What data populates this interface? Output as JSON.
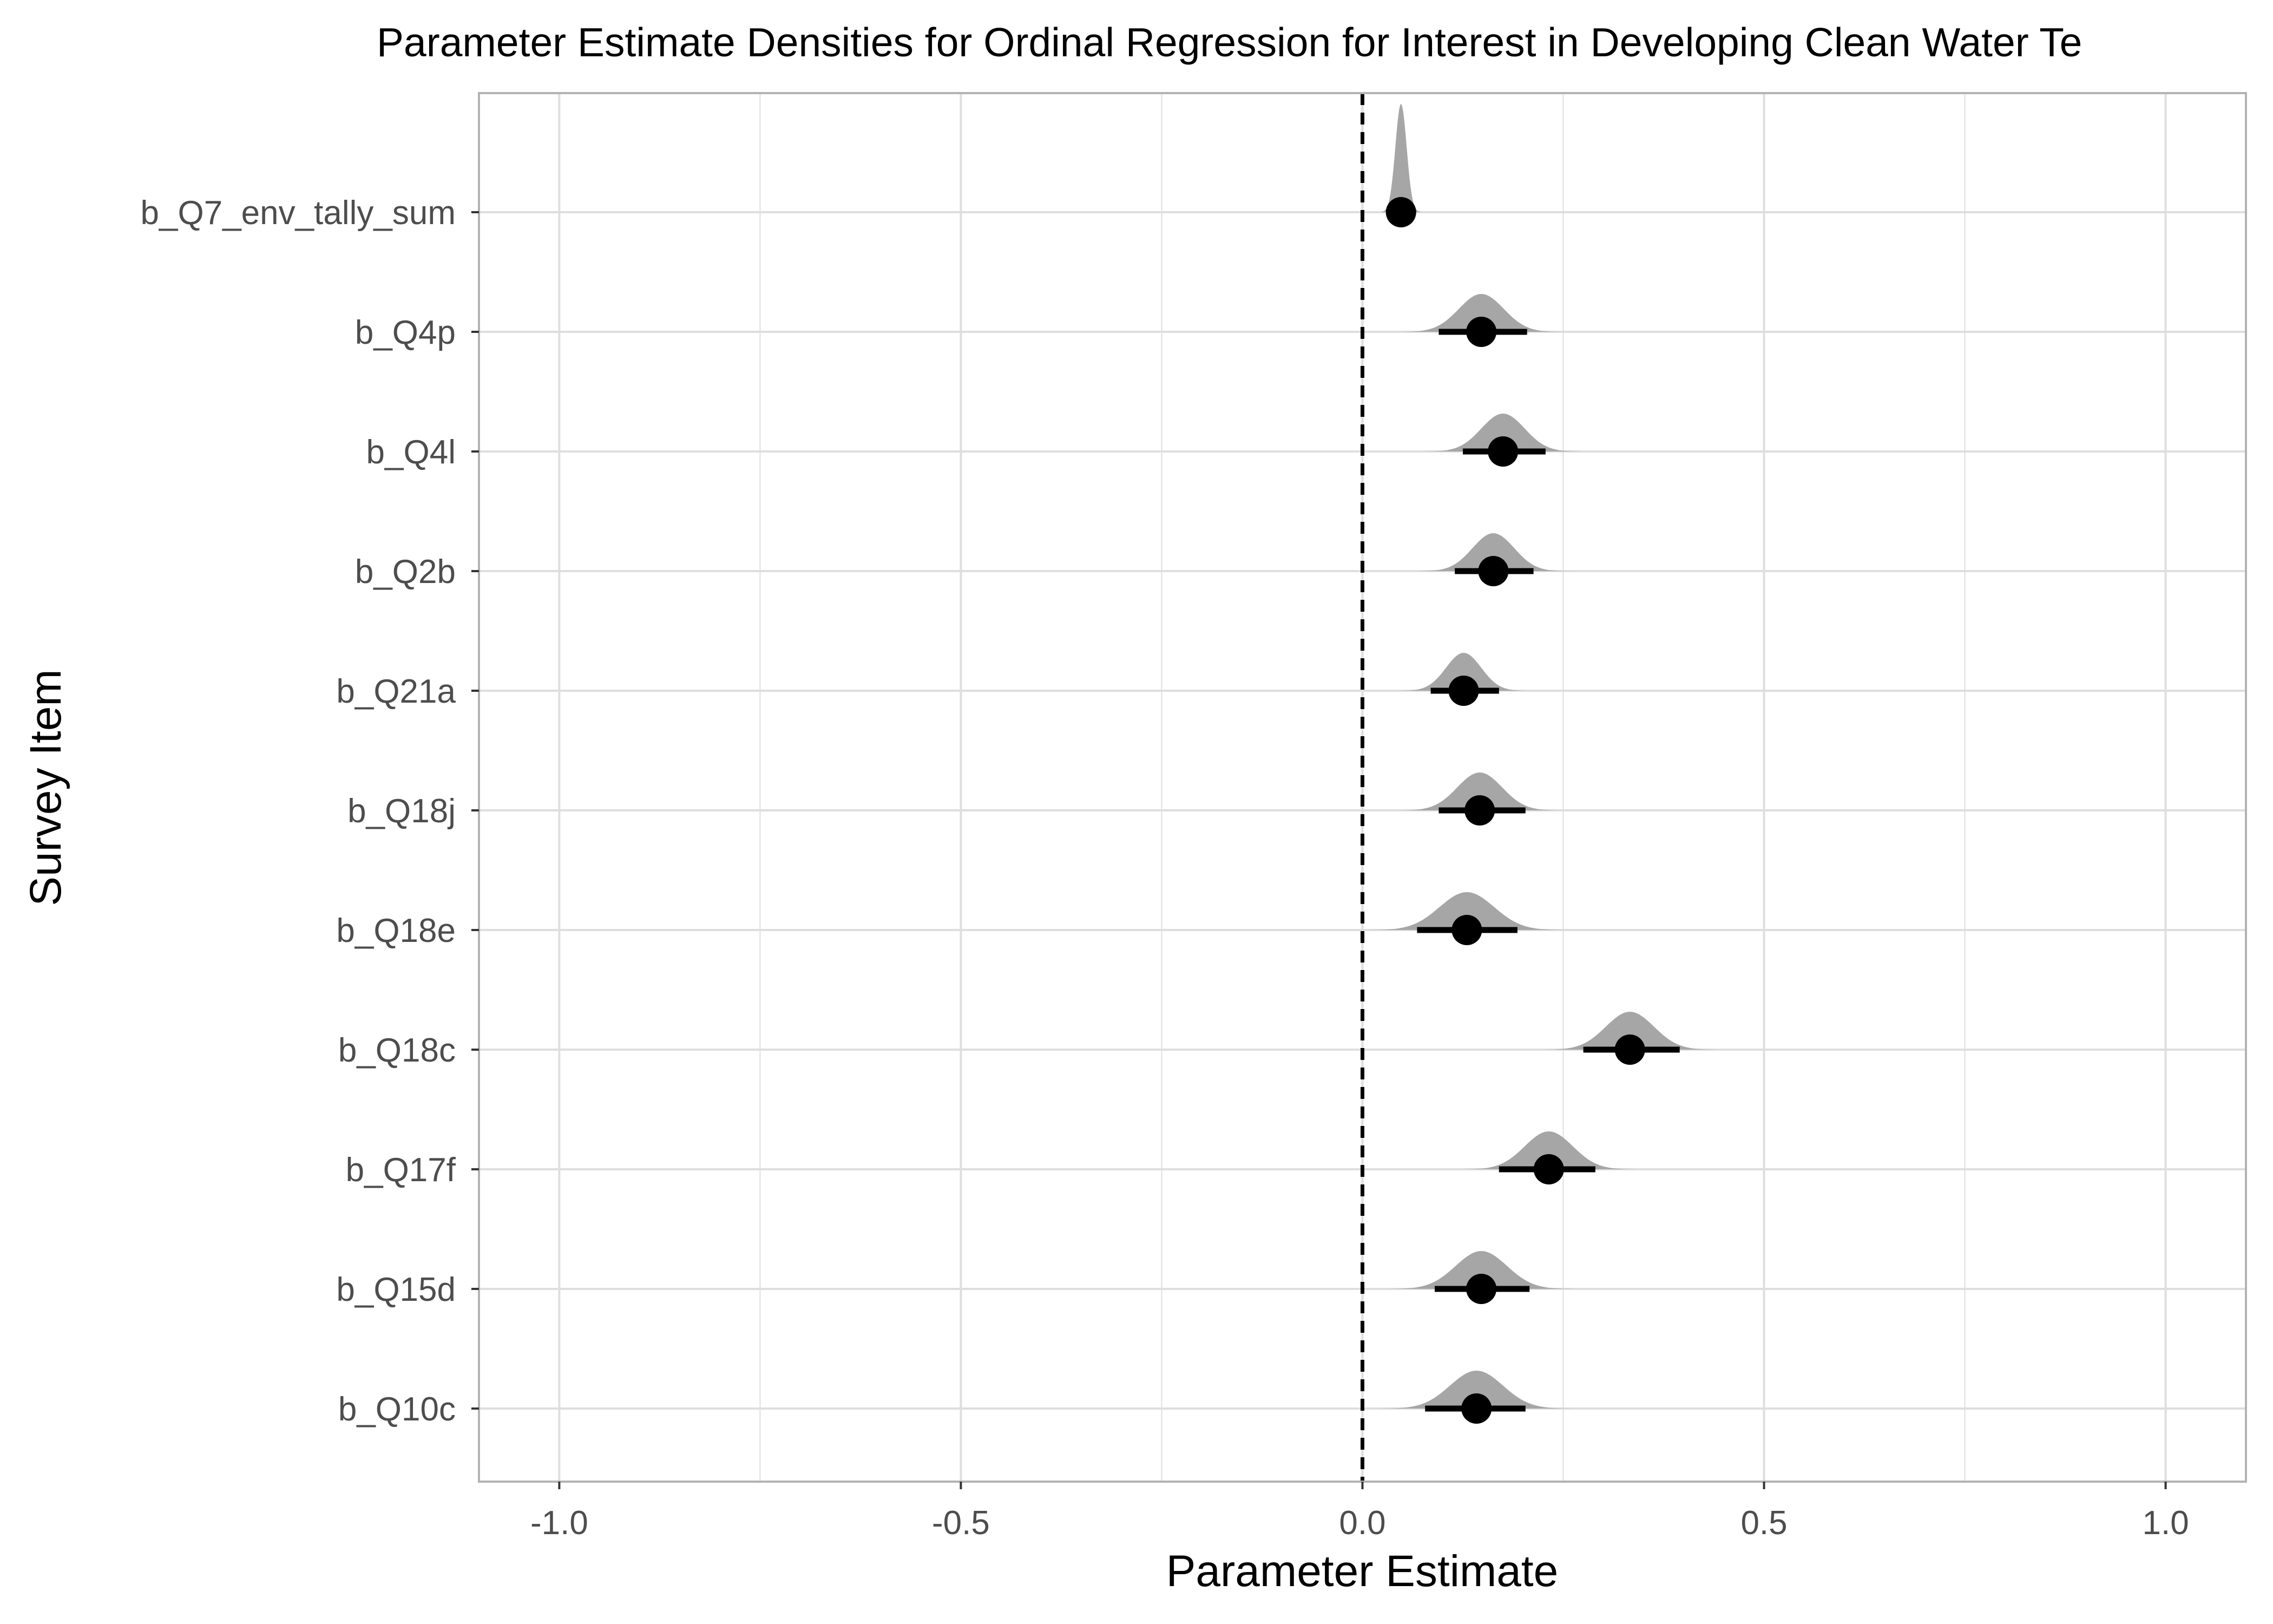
{
  "chart_data": {
    "type": "density-interval",
    "title": "Parameter Estimate Densities for Ordinal Regression for Interest in Developing Clean Water Te",
    "xlabel": "Parameter Estimate",
    "ylabel": "Survey Item",
    "xlim": [
      -1.1,
      1.1
    ],
    "x_ticks": [
      -1.0,
      -0.5,
      0.0,
      0.5,
      1.0
    ],
    "x_tick_labels": [
      "-1.0",
      "-0.5",
      "0.0",
      "0.5",
      "1.0"
    ],
    "reference_line": 0.0,
    "grid": true,
    "colors": {
      "density": "#a6a6a6",
      "point": "#000000",
      "grid": "#dedede",
      "panel_border": "#b3b3b3"
    },
    "items": [
      {
        "label": "b_Q7_env_tally_sum",
        "estimate": 0.048,
        "lower": 0.042,
        "upper": 0.054,
        "sd": 0.007
      },
      {
        "label": "b_Q4p",
        "estimate": 0.148,
        "lower": 0.095,
        "upper": 0.205,
        "sd": 0.028
      },
      {
        "label": "b_Q4l",
        "estimate": 0.175,
        "lower": 0.125,
        "upper": 0.228,
        "sd": 0.027
      },
      {
        "label": "b_Q2b",
        "estimate": 0.163,
        "lower": 0.115,
        "upper": 0.213,
        "sd": 0.026
      },
      {
        "label": "b_Q21a",
        "estimate": 0.126,
        "lower": 0.085,
        "upper": 0.17,
        "sd": 0.022
      },
      {
        "label": "b_Q18j",
        "estimate": 0.146,
        "lower": 0.095,
        "upper": 0.203,
        "sd": 0.028
      },
      {
        "label": "b_Q18e",
        "estimate": 0.13,
        "lower": 0.068,
        "upper": 0.193,
        "sd": 0.034
      },
      {
        "label": "b_Q18c",
        "estimate": 0.333,
        "lower": 0.275,
        "upper": 0.395,
        "sd": 0.03
      },
      {
        "label": "b_Q17f",
        "estimate": 0.232,
        "lower": 0.17,
        "upper": 0.29,
        "sd": 0.03
      },
      {
        "label": "b_Q15d",
        "estimate": 0.148,
        "lower": 0.09,
        "upper": 0.208,
        "sd": 0.032
      },
      {
        "label": "b_Q10c",
        "estimate": 0.142,
        "lower": 0.078,
        "upper": 0.203,
        "sd": 0.033
      }
    ]
  }
}
